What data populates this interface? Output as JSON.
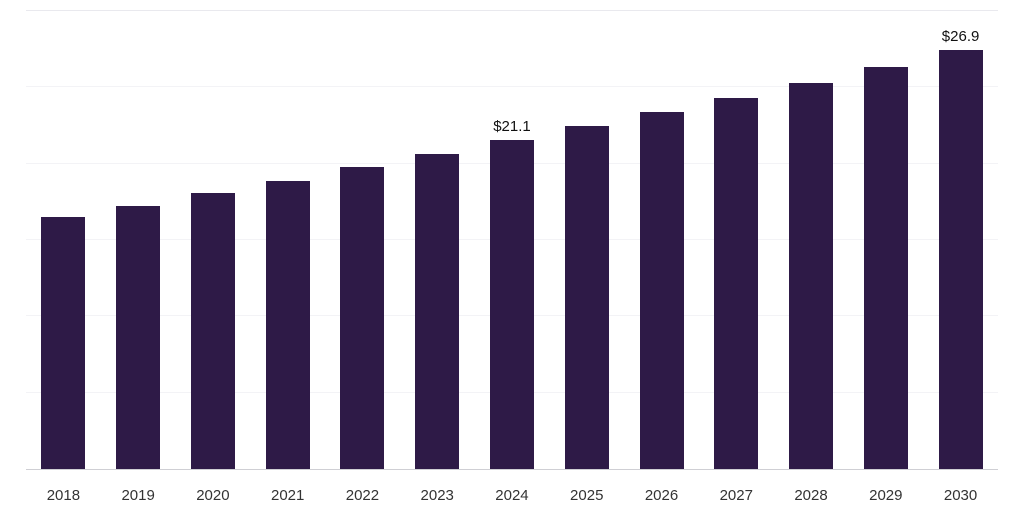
{
  "colors": {
    "bar": "#2e1a47",
    "axis_line": "#cfcfd4",
    "gridline": "#f3f3f6",
    "label_text": "#333333",
    "annotation_text": "#111111",
    "background": "#ffffff"
  },
  "chart_data": {
    "type": "bar",
    "title": "",
    "xlabel": "",
    "ylabel": "",
    "categories": [
      "2018",
      "2019",
      "2020",
      "2021",
      "2022",
      "2023",
      "2024",
      "2025",
      "2026",
      "2027",
      "2028",
      "2029",
      "2030"
    ],
    "values": [
      16.2,
      16.9,
      17.7,
      18.5,
      19.4,
      20.2,
      21.1,
      22.0,
      22.9,
      23.8,
      24.8,
      25.8,
      26.9
    ],
    "data_labels": [
      "",
      "",
      "",
      "",
      "",
      "",
      "$21.1",
      "",
      "",
      "",
      "",
      "",
      "$26.9"
    ],
    "ylim": [
      0,
      29.4
    ],
    "gridline_values": [
      4.9,
      9.8,
      14.7,
      19.6,
      24.5
    ],
    "grid": "faint horizontal",
    "legend": "none"
  }
}
